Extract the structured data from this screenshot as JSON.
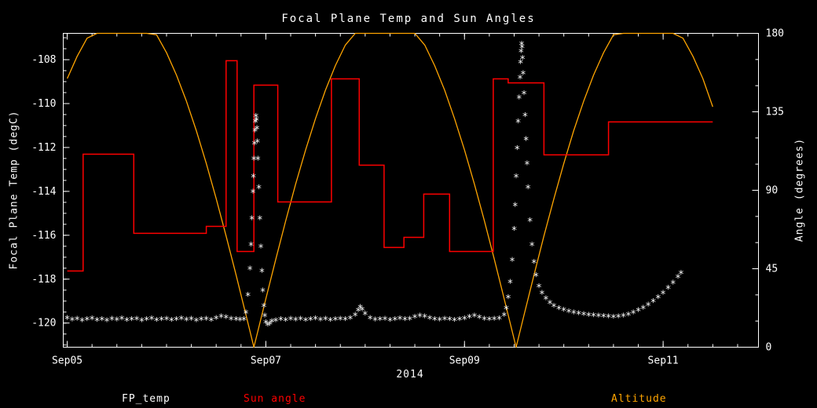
{
  "chart_data": {
    "type": "mixed",
    "title": "Focal Plane Temp and Sun Angles",
    "background": "#000000",
    "axis_color": "#ffffff",
    "x_axis": {
      "label": "2014",
      "tick_positions_days": [
        0,
        2,
        4,
        6
      ],
      "tick_labels": [
        "Sep05",
        "Sep07",
        "Sep09",
        "Sep11"
      ],
      "range_days": [
        -0.04,
        6.96
      ],
      "minor_tick_step": 0.25
    },
    "left_axis": {
      "label": "Focal Plane Temp (degC)",
      "ticks": [
        -108,
        -110,
        -112,
        -114,
        -116,
        -118,
        -120
      ],
      "range": [
        -121.1,
        -106.8
      ],
      "minor_tick_step": 0.5
    },
    "right_axis": {
      "label": "Angle (degrees)",
      "ticks": [
        0,
        45,
        90,
        135,
        180
      ],
      "range": [
        0,
        180
      ],
      "minor_tick_step": 15
    },
    "series": [
      {
        "name": "FP_temp",
        "type": "scatter",
        "marker": "asterisk",
        "color": "#ffffff",
        "axis": "left",
        "points": [
          [
            0.0,
            -119.85
          ],
          [
            0.05,
            -119.92
          ],
          [
            0.1,
            -119.88
          ],
          [
            0.15,
            -119.95
          ],
          [
            0.2,
            -119.9
          ],
          [
            0.25,
            -119.87
          ],
          [
            0.3,
            -119.93
          ],
          [
            0.35,
            -119.9
          ],
          [
            0.4,
            -119.96
          ],
          [
            0.45,
            -119.89
          ],
          [
            0.5,
            -119.92
          ],
          [
            0.55,
            -119.86
          ],
          [
            0.6,
            -119.94
          ],
          [
            0.65,
            -119.9
          ],
          [
            0.7,
            -119.88
          ],
          [
            0.75,
            -119.95
          ],
          [
            0.8,
            -119.91
          ],
          [
            0.85,
            -119.87
          ],
          [
            0.9,
            -119.93
          ],
          [
            0.95,
            -119.9
          ],
          [
            1.0,
            -119.89
          ],
          [
            1.05,
            -119.94
          ],
          [
            1.1,
            -119.9
          ],
          [
            1.15,
            -119.86
          ],
          [
            1.2,
            -119.92
          ],
          [
            1.25,
            -119.89
          ],
          [
            1.3,
            -119.95
          ],
          [
            1.35,
            -119.91
          ],
          [
            1.4,
            -119.88
          ],
          [
            1.45,
            -119.93
          ],
          [
            1.5,
            -119.85
          ],
          [
            1.55,
            -119.78
          ],
          [
            1.6,
            -119.82
          ],
          [
            1.65,
            -119.88
          ],
          [
            1.7,
            -119.9
          ],
          [
            1.74,
            -119.92
          ],
          [
            1.78,
            -119.9
          ],
          [
            1.8,
            -119.6
          ],
          [
            1.82,
            -118.8
          ],
          [
            1.84,
            -117.6
          ],
          [
            1.85,
            -116.5
          ],
          [
            1.86,
            -115.3
          ],
          [
            1.87,
            -114.1
          ],
          [
            1.875,
            -113.4
          ],
          [
            1.88,
            -112.6
          ],
          [
            1.885,
            -111.9
          ],
          [
            1.89,
            -111.3
          ],
          [
            1.895,
            -110.9
          ],
          [
            1.9,
            -110.65
          ],
          [
            1.905,
            -110.8
          ],
          [
            1.91,
            -111.2
          ],
          [
            1.915,
            -111.8
          ],
          [
            1.92,
            -112.6
          ],
          [
            1.93,
            -113.9
          ],
          [
            1.94,
            -115.3
          ],
          [
            1.95,
            -116.6
          ],
          [
            1.96,
            -117.7
          ],
          [
            1.97,
            -118.6
          ],
          [
            1.98,
            -119.3
          ],
          [
            1.99,
            -119.75
          ],
          [
            2.0,
            -120.05
          ],
          [
            2.02,
            -120.15
          ],
          [
            2.04,
            -120.1
          ],
          [
            2.06,
            -120.0
          ],
          [
            2.1,
            -119.95
          ],
          [
            2.15,
            -119.9
          ],
          [
            2.2,
            -119.93
          ],
          [
            2.25,
            -119.88
          ],
          [
            2.3,
            -119.92
          ],
          [
            2.35,
            -119.89
          ],
          [
            2.4,
            -119.94
          ],
          [
            2.45,
            -119.9
          ],
          [
            2.5,
            -119.87
          ],
          [
            2.55,
            -119.92
          ],
          [
            2.6,
            -119.89
          ],
          [
            2.65,
            -119.93
          ],
          [
            2.7,
            -119.9
          ],
          [
            2.75,
            -119.88
          ],
          [
            2.8,
            -119.91
          ],
          [
            2.85,
            -119.85
          ],
          [
            2.9,
            -119.7
          ],
          [
            2.93,
            -119.5
          ],
          [
            2.95,
            -119.35
          ],
          [
            2.97,
            -119.45
          ],
          [
            3.0,
            -119.65
          ],
          [
            3.05,
            -119.85
          ],
          [
            3.1,
            -119.92
          ],
          [
            3.15,
            -119.9
          ],
          [
            3.2,
            -119.88
          ],
          [
            3.25,
            -119.93
          ],
          [
            3.3,
            -119.9
          ],
          [
            3.35,
            -119.87
          ],
          [
            3.4,
            -119.91
          ],
          [
            3.45,
            -119.89
          ],
          [
            3.5,
            -119.8
          ],
          [
            3.55,
            -119.75
          ],
          [
            3.6,
            -119.78
          ],
          [
            3.65,
            -119.85
          ],
          [
            3.7,
            -119.9
          ],
          [
            3.75,
            -119.92
          ],
          [
            3.8,
            -119.88
          ],
          [
            3.85,
            -119.91
          ],
          [
            3.9,
            -119.94
          ],
          [
            3.95,
            -119.9
          ],
          [
            4.0,
            -119.87
          ],
          [
            4.05,
            -119.8
          ],
          [
            4.1,
            -119.75
          ],
          [
            4.15,
            -119.82
          ],
          [
            4.2,
            -119.88
          ],
          [
            4.25,
            -119.91
          ],
          [
            4.3,
            -119.89
          ],
          [
            4.35,
            -119.86
          ],
          [
            4.4,
            -119.7
          ],
          [
            4.42,
            -119.4
          ],
          [
            4.44,
            -118.9
          ],
          [
            4.46,
            -118.2
          ],
          [
            4.48,
            -117.2
          ],
          [
            4.5,
            -115.8
          ],
          [
            4.51,
            -114.7
          ],
          [
            4.52,
            -113.4
          ],
          [
            4.53,
            -112.1
          ],
          [
            4.54,
            -110.9
          ],
          [
            4.55,
            -109.8
          ],
          [
            4.56,
            -108.9
          ],
          [
            4.565,
            -108.2
          ],
          [
            4.57,
            -107.7
          ],
          [
            4.575,
            -107.35
          ],
          [
            4.58,
            -107.5
          ],
          [
            4.585,
            -108.0
          ],
          [
            4.59,
            -108.7
          ],
          [
            4.6,
            -109.6
          ],
          [
            4.61,
            -110.6
          ],
          [
            4.62,
            -111.7
          ],
          [
            4.63,
            -112.8
          ],
          [
            4.64,
            -113.9
          ],
          [
            4.66,
            -115.4
          ],
          [
            4.68,
            -116.5
          ],
          [
            4.7,
            -117.3
          ],
          [
            4.72,
            -117.9
          ],
          [
            4.75,
            -118.4
          ],
          [
            4.78,
            -118.7
          ],
          [
            4.82,
            -118.95
          ],
          [
            4.86,
            -119.15
          ],
          [
            4.9,
            -119.3
          ],
          [
            4.95,
            -119.4
          ],
          [
            5.0,
            -119.48
          ],
          [
            5.05,
            -119.55
          ],
          [
            5.1,
            -119.6
          ],
          [
            5.15,
            -119.63
          ],
          [
            5.2,
            -119.67
          ],
          [
            5.25,
            -119.7
          ],
          [
            5.3,
            -119.72
          ],
          [
            5.35,
            -119.74
          ],
          [
            5.4,
            -119.76
          ],
          [
            5.45,
            -119.78
          ],
          [
            5.5,
            -119.8
          ],
          [
            5.55,
            -119.78
          ],
          [
            5.6,
            -119.74
          ],
          [
            5.65,
            -119.68
          ],
          [
            5.7,
            -119.6
          ],
          [
            5.75,
            -119.5
          ],
          [
            5.8,
            -119.38
          ],
          [
            5.85,
            -119.24
          ],
          [
            5.9,
            -119.08
          ],
          [
            5.95,
            -118.9
          ],
          [
            6.0,
            -118.7
          ],
          [
            6.05,
            -118.48
          ],
          [
            6.1,
            -118.24
          ],
          [
            6.15,
            -117.98
          ],
          [
            6.18,
            -117.8
          ]
        ]
      },
      {
        "name": "Sun angle",
        "type": "step",
        "color": "#ff0000",
        "axis": "right",
        "end_t": 6.5,
        "points": [
          [
            0.0,
            43.7
          ],
          [
            0.16,
            110.7
          ],
          [
            0.67,
            65.3
          ],
          [
            1.4,
            69.3
          ],
          [
            1.6,
            164.3
          ],
          [
            1.71,
            54.9
          ],
          [
            1.88,
            150.3
          ],
          [
            2.12,
            83.3
          ],
          [
            2.66,
            153.9
          ],
          [
            2.94,
            104.4
          ],
          [
            3.19,
            57.2
          ],
          [
            3.39,
            63.0
          ],
          [
            3.59,
            87.8
          ],
          [
            3.85,
            54.9
          ],
          [
            4.29,
            153.9
          ],
          [
            4.44,
            151.6
          ],
          [
            4.8,
            110.3
          ],
          [
            5.45,
            129.2
          ]
        ]
      },
      {
        "name": "Altitude",
        "type": "line",
        "color": "#ffa500",
        "axis": "right",
        "points": [
          [
            0.0,
            154.1
          ],
          [
            0.1,
            166.8
          ],
          [
            0.2,
            177.2
          ],
          [
            0.3,
            180
          ],
          [
            0.4,
            180
          ],
          [
            0.5,
            180
          ],
          [
            0.6,
            180
          ],
          [
            0.7,
            180
          ],
          [
            0.8,
            180
          ],
          [
            0.9,
            179.2
          ],
          [
            1.0,
            168.9
          ],
          [
            1.1,
            156.1
          ],
          [
            1.2,
            141.1
          ],
          [
            1.3,
            124.2
          ],
          [
            1.4,
            105.4
          ],
          [
            1.5,
            85.2
          ],
          [
            1.6,
            63.8
          ],
          [
            1.7,
            41.5
          ],
          [
            1.8,
            18.5
          ],
          [
            1.88,
            0
          ],
          [
            2.0,
            27.7
          ],
          [
            2.1,
            50.5
          ],
          [
            2.2,
            72.5
          ],
          [
            2.3,
            93.5
          ],
          [
            2.4,
            113.1
          ],
          [
            2.5,
            131.1
          ],
          [
            2.6,
            147.4
          ],
          [
            2.7,
            161.5
          ],
          [
            2.8,
            173.3
          ],
          [
            2.9,
            180
          ],
          [
            3.0,
            180
          ],
          [
            3.1,
            180
          ],
          [
            3.2,
            180
          ],
          [
            3.3,
            180
          ],
          [
            3.4,
            180
          ],
          [
            3.5,
            180
          ],
          [
            3.6,
            173.3
          ],
          [
            3.7,
            161.5
          ],
          [
            3.8,
            147.4
          ],
          [
            3.9,
            131.1
          ],
          [
            4.0,
            113.1
          ],
          [
            4.1,
            93.5
          ],
          [
            4.2,
            72.5
          ],
          [
            4.3,
            50.5
          ],
          [
            4.4,
            27.7
          ],
          [
            4.52,
            0
          ],
          [
            4.6,
            18.5
          ],
          [
            4.7,
            41.5
          ],
          [
            4.8,
            63.8
          ],
          [
            4.9,
            85.2
          ],
          [
            5.0,
            105.4
          ],
          [
            5.1,
            124.2
          ],
          [
            5.2,
            141.1
          ],
          [
            5.3,
            156.1
          ],
          [
            5.4,
            168.9
          ],
          [
            5.5,
            179.2
          ],
          [
            5.6,
            180
          ],
          [
            5.7,
            180
          ],
          [
            5.8,
            180
          ],
          [
            5.9,
            180
          ],
          [
            6.0,
            180
          ],
          [
            6.1,
            180
          ],
          [
            6.2,
            177.2
          ],
          [
            6.3,
            166.8
          ],
          [
            6.4,
            154.1
          ],
          [
            6.5,
            137.9
          ]
        ]
      }
    ]
  }
}
